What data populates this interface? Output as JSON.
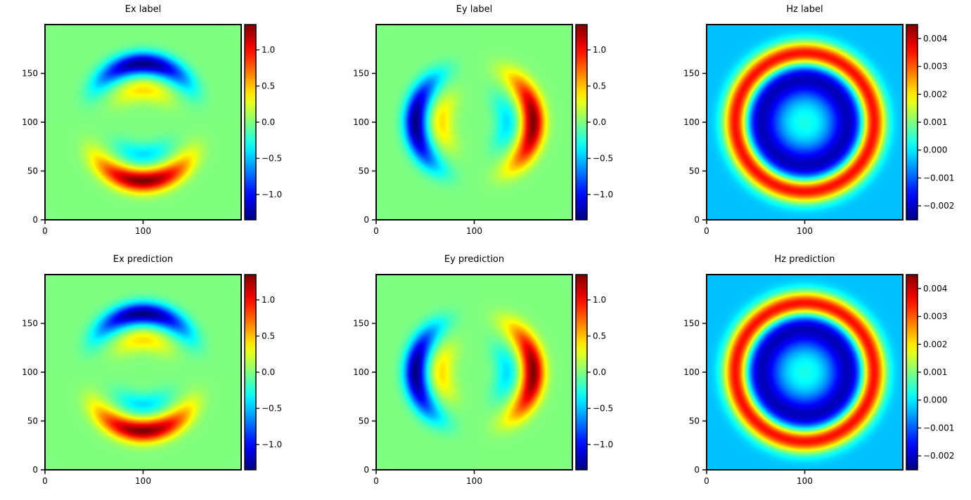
{
  "chart_data": [
    {
      "type": "heatmap",
      "title": "Ex label",
      "field": "Ex",
      "pattern": "horizontal-arcs",
      "colormap": "jet",
      "xlim": [
        0,
        200
      ],
      "ylim": [
        0,
        200
      ],
      "xticks": [
        "0",
        "100"
      ],
      "yticks": [
        "0",
        "50",
        "100",
        "150"
      ],
      "colorbar": {
        "range": [
          -1.35,
          1.35
        ],
        "ticks": [
          1.0,
          0.5,
          0.0,
          -0.5,
          -1.0
        ],
        "tick_labels": [
          "1.0",
          "0.5",
          "0.0",
          "−0.5",
          "−1.0"
        ]
      }
    },
    {
      "type": "heatmap",
      "title": "Ey label",
      "field": "Ey",
      "pattern": "vertical-arcs",
      "colormap": "jet",
      "xlim": [
        0,
        200
      ],
      "ylim": [
        0,
        200
      ],
      "xticks": [
        "0",
        "100"
      ],
      "yticks": [
        "0",
        "50",
        "100",
        "150"
      ],
      "colorbar": {
        "range": [
          -1.35,
          1.35
        ],
        "ticks": [
          1.0,
          0.5,
          0.0,
          -0.5,
          -1.0
        ],
        "tick_labels": [
          "1.0",
          "0.5",
          "0.0",
          "−0.5",
          "−1.0"
        ]
      }
    },
    {
      "type": "heatmap",
      "title": "Hz label",
      "field": "Hz",
      "pattern": "concentric-rings",
      "colormap": "jet",
      "xlim": [
        0,
        200
      ],
      "ylim": [
        0,
        200
      ],
      "xticks": [
        "0",
        "100"
      ],
      "yticks": [
        "0",
        "50",
        "100",
        "150"
      ],
      "colorbar": {
        "range": [
          -0.0025,
          0.0045
        ],
        "ticks": [
          0.004,
          0.003,
          0.002,
          0.001,
          0.0,
          -0.001,
          -0.002
        ],
        "tick_labels": [
          "0.004",
          "0.003",
          "0.002",
          "0.001",
          "0.000",
          "−0.001",
          "−0.002"
        ]
      }
    },
    {
      "type": "heatmap",
      "title": "Ex prediction",
      "field": "Ex",
      "pattern": "horizontal-arcs",
      "colormap": "jet",
      "xlim": [
        0,
        200
      ],
      "ylim": [
        0,
        200
      ],
      "xticks": [
        "0",
        "100"
      ],
      "yticks": [
        "0",
        "50",
        "100",
        "150"
      ],
      "colorbar": {
        "range": [
          -1.35,
          1.35
        ],
        "ticks": [
          1.0,
          0.5,
          0.0,
          -0.5,
          -1.0
        ],
        "tick_labels": [
          "1.0",
          "0.5",
          "0.0",
          "−0.5",
          "−1.0"
        ]
      }
    },
    {
      "type": "heatmap",
      "title": "Ey prediction",
      "field": "Ey",
      "pattern": "vertical-arcs",
      "colormap": "jet",
      "xlim": [
        0,
        200
      ],
      "ylim": [
        0,
        200
      ],
      "xticks": [
        "0",
        "100"
      ],
      "yticks": [
        "0",
        "50",
        "100",
        "150"
      ],
      "colorbar": {
        "range": [
          -1.35,
          1.35
        ],
        "ticks": [
          1.0,
          0.5,
          0.0,
          -0.5,
          -1.0
        ],
        "tick_labels": [
          "1.0",
          "0.5",
          "0.0",
          "−0.5",
          "−1.0"
        ]
      }
    },
    {
      "type": "heatmap",
      "title": "Hz prediction",
      "field": "Hz",
      "pattern": "concentric-rings",
      "colormap": "jet",
      "xlim": [
        0,
        200
      ],
      "ylim": [
        0,
        200
      ],
      "xticks": [
        "0",
        "100"
      ],
      "yticks": [
        "0",
        "50",
        "100",
        "150"
      ],
      "colorbar": {
        "range": [
          -0.0025,
          0.0045
        ],
        "ticks": [
          0.004,
          0.003,
          0.002,
          0.001,
          0.0,
          -0.001,
          -0.002
        ],
        "tick_labels": [
          "0.004",
          "0.003",
          "0.002",
          "0.001",
          "0.000",
          "−0.001",
          "−0.002"
        ]
      }
    }
  ]
}
